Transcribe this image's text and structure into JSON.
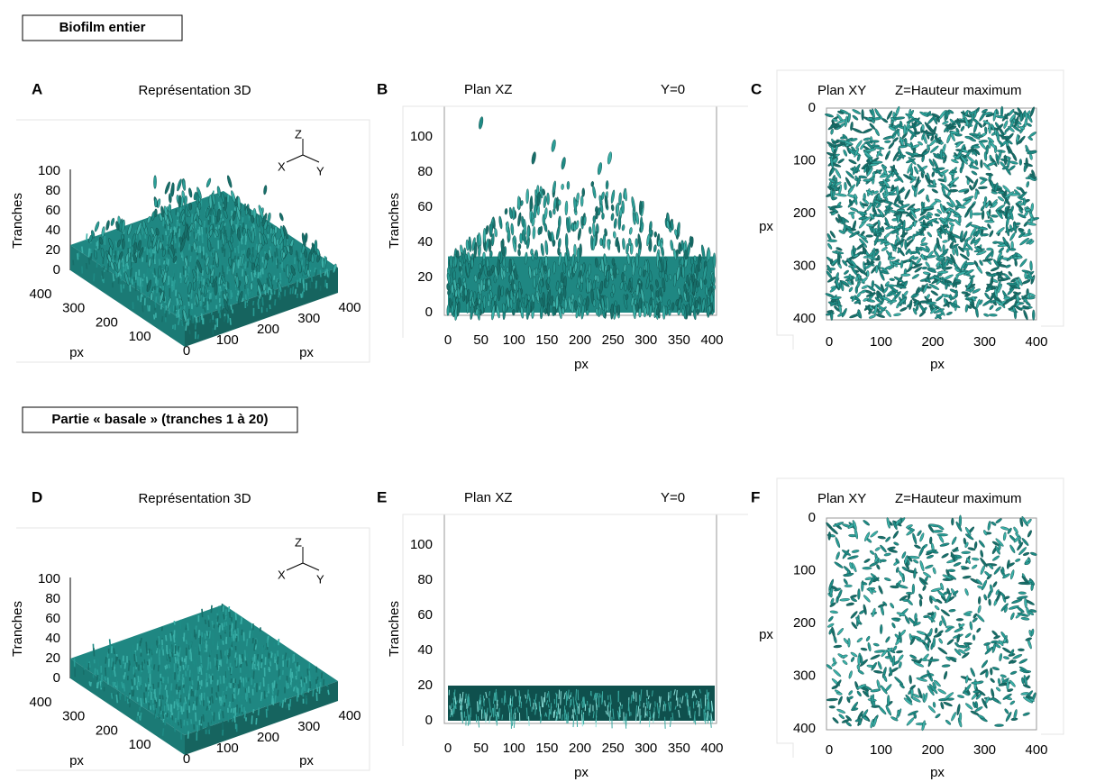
{
  "sections": [
    {
      "heading": "Biofilm entier",
      "panels": [
        {
          "letter": "A",
          "title": "Représentation 3D",
          "z_label": "Tranches",
          "z_ticks": [
            0,
            20,
            40,
            60,
            80,
            100
          ],
          "left_label": "px",
          "left_ticks": [
            400,
            300,
            200,
            100
          ],
          "right_label": "px",
          "right_ticks": [
            0,
            100,
            200,
            300,
            400
          ],
          "compass": [
            "Z",
            "X",
            "Y"
          ]
        },
        {
          "letter": "B",
          "title": "Plan XZ",
          "subtitle": "Y=0",
          "y_label": "Tranches",
          "y_ticks": [
            0,
            20,
            40,
            60,
            80,
            100
          ],
          "x_label": "px",
          "x_ticks": [
            0,
            50,
            100,
            150,
            200,
            250,
            300,
            350,
            400
          ]
        },
        {
          "letter": "C",
          "title": "Plan XY",
          "subtitle": "Z=Hauteur maximum",
          "y_label": "px",
          "y_ticks": [
            0,
            100,
            200,
            300,
            400
          ],
          "x_label": "px",
          "x_ticks": [
            0,
            100,
            200,
            300,
            400
          ]
        }
      ]
    },
    {
      "heading": "Partie « basale » (tranches 1 à 20)",
      "panels": [
        {
          "letter": "D",
          "title": "Représentation 3D",
          "z_label": "Tranches",
          "z_ticks": [
            0,
            20,
            40,
            60,
            80,
            100
          ],
          "left_label": "px",
          "left_ticks": [
            400,
            300,
            200,
            100
          ],
          "right_label": "px",
          "right_ticks": [
            0,
            100,
            200,
            300,
            400
          ],
          "compass": [
            "Z",
            "X",
            "Y"
          ]
        },
        {
          "letter": "E",
          "title": "Plan XZ",
          "subtitle": "Y=0",
          "y_label": "Tranches",
          "y_ticks": [
            0,
            20,
            40,
            60,
            80,
            100
          ],
          "x_label": "px",
          "x_ticks": [
            0,
            50,
            100,
            150,
            200,
            250,
            300,
            350,
            400
          ]
        },
        {
          "letter": "F",
          "title": "Plan XY",
          "subtitle": "Z=Hauteur maximum",
          "y_label": "px",
          "y_ticks": [
            0,
            100,
            200,
            300,
            400
          ],
          "x_label": "px",
          "x_ticks": [
            0,
            100,
            200,
            300,
            400
          ]
        }
      ]
    }
  ]
}
